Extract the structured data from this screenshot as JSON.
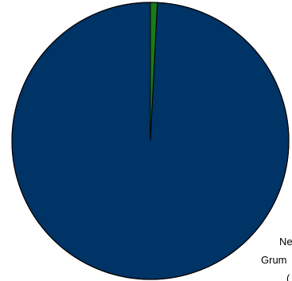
{
  "chart_data": {
    "type": "pie",
    "title": "",
    "slices": [
      {
        "label": "Ne",
        "value": 99.2,
        "color": "#003366"
      },
      {
        "label": "Grum",
        "value": 0.8,
        "color": "#1a7a1a"
      }
    ],
    "start_angle_deg": -90,
    "direction": "clockwise",
    "legend": "none"
  }
}
